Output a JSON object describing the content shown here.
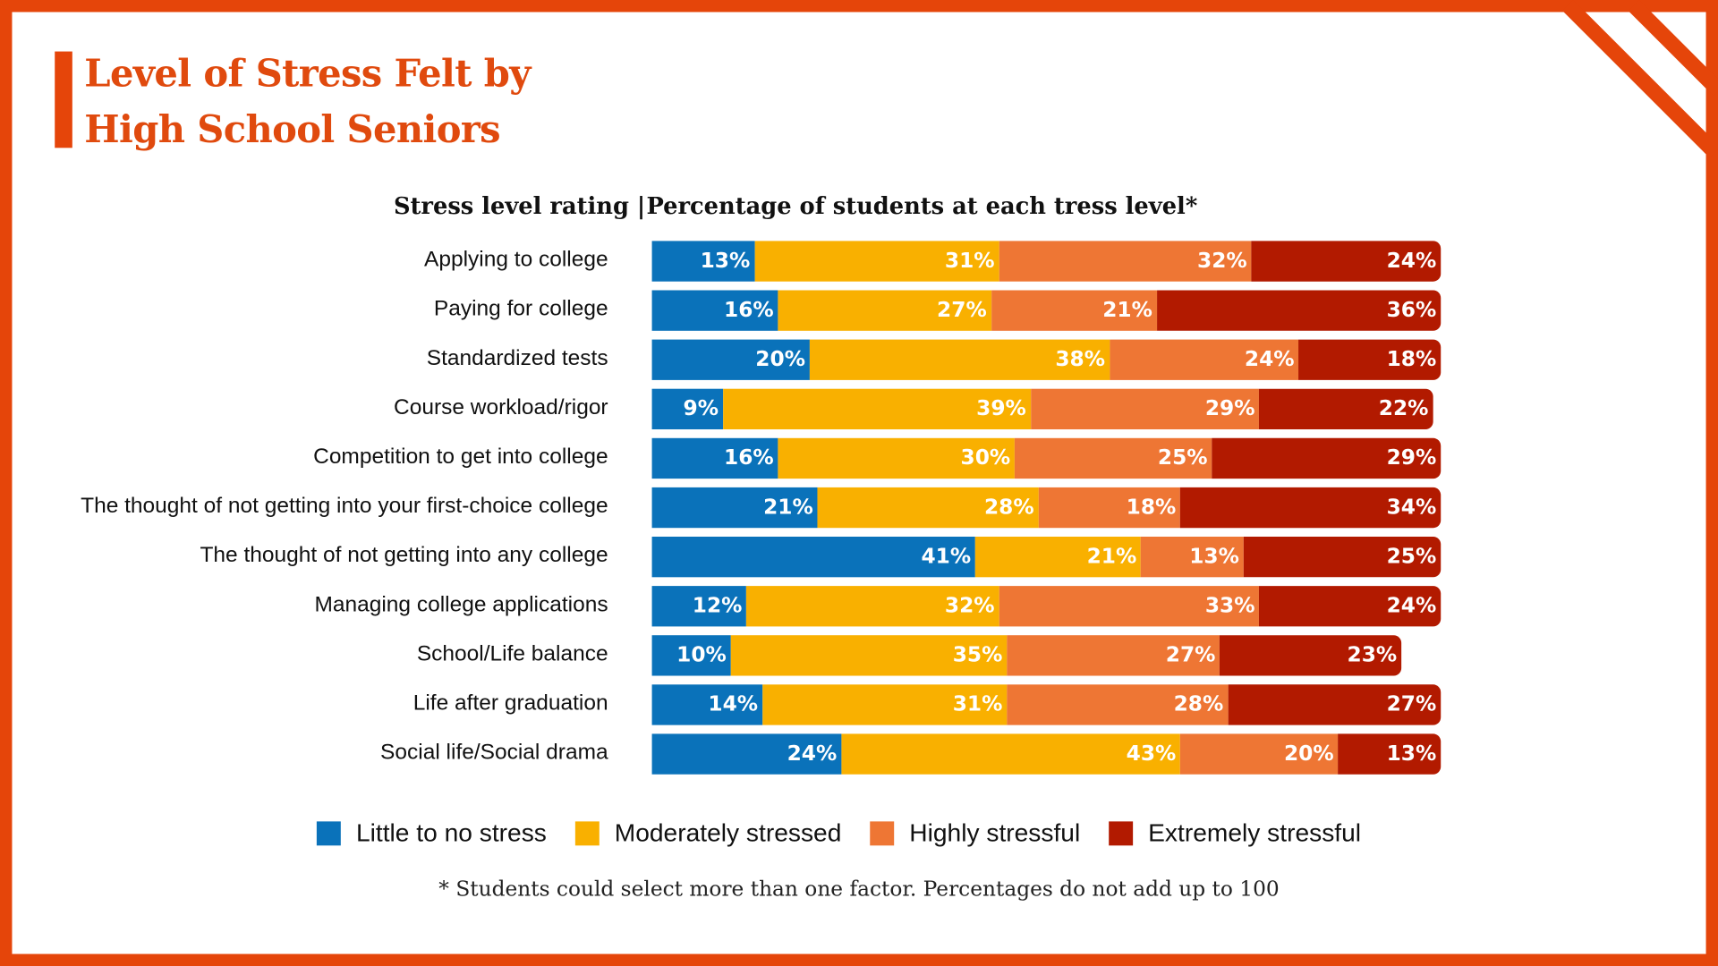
{
  "title_lines": [
    "Level of Stress Felt by",
    "High School Seniors"
  ],
  "header_left": "Stress level rating |",
  "header_right": "Percentage of students at each tress level*",
  "footnote": "* Students could select more than one factor. Percentages do not add up to 100",
  "colors": {
    "frame": "#E5450A",
    "title": "#E04A0E"
  },
  "chart_data": {
    "type": "bar",
    "orientation": "horizontal",
    "stacked": true,
    "title": "Level of Stress Felt by High School Seniors",
    "xlim": [
      0,
      100
    ],
    "legend_position": "bottom",
    "categories": [
      "Applying to college",
      "Paying for college",
      "Standardized tests",
      "Course workload/rigor",
      "Competition to get into college",
      "The thought of not getting into your first-choice college",
      "The thought of not getting into any college",
      "Managing college applications",
      "School/Life balance",
      "Life after graduation",
      "Social life/Social drama"
    ],
    "series": [
      {
        "name": "Little to no stress",
        "color": "#0A72BA",
        "values": [
          13,
          16,
          20,
          9,
          16,
          21,
          41,
          12,
          10,
          14,
          24
        ]
      },
      {
        "name": "Moderately stressed",
        "color": "#F9B000",
        "values": [
          31,
          27,
          38,
          39,
          30,
          28,
          21,
          32,
          35,
          31,
          43
        ]
      },
      {
        "name": "Highly stressful",
        "color": "#EE7634",
        "values": [
          32,
          21,
          24,
          29,
          25,
          18,
          13,
          33,
          27,
          28,
          20
        ]
      },
      {
        "name": "Extremely stressful",
        "color": "#B21A00",
        "values": [
          24,
          36,
          18,
          22,
          29,
          34,
          25,
          24,
          23,
          27,
          13
        ]
      }
    ]
  }
}
